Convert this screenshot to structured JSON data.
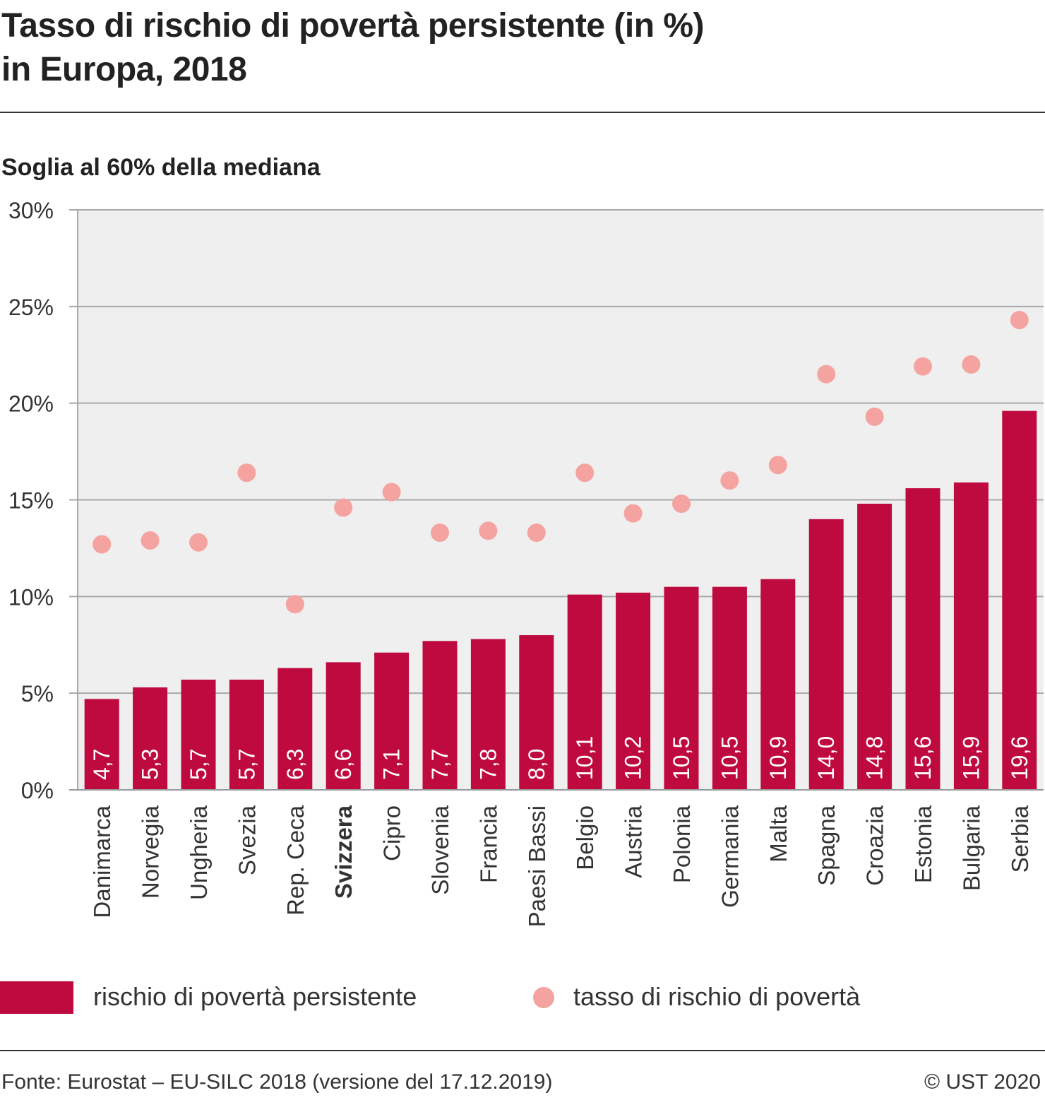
{
  "title_line1": "Tasso di rischio di povertà persistente (in %)",
  "title_line2": "in Europa, 2018",
  "subtitle": "Soglia al 60% della mediana",
  "legend": {
    "bar_label": "rischio di povertà persistente",
    "dot_label": "tasso di rischio di povertà"
  },
  "source": "Fonte:  Eurostat – EU-SILC 2018 (versione del 17.12.2019)",
  "copyright": "© UST 2020",
  "colors": {
    "bar": "#be0a3f",
    "dot": "#f4a3a0",
    "plot_bg": "#efefef",
    "grid": "#a8a8a8"
  },
  "chart_data": {
    "type": "bar",
    "categories": [
      "Danimarca",
      "Norvegia",
      "Ungheria",
      "Svezia",
      "Rep. Ceca",
      "Svizzera",
      "Cipro",
      "Slovenia",
      "Francia",
      "Paesi Bassi",
      "Belgio",
      "Austria",
      "Polonia",
      "Germania",
      "Malta",
      "Spagna",
      "Croazia",
      "Estonia",
      "Bulgaria",
      "Serbia"
    ],
    "highlighted_category": "Svizzera",
    "series": [
      {
        "name": "rischio di povertà persistente",
        "type": "bar",
        "values": [
          4.7,
          5.3,
          5.7,
          5.7,
          6.3,
          6.6,
          7.1,
          7.7,
          7.8,
          8.0,
          10.1,
          10.2,
          10.5,
          10.5,
          10.9,
          14.0,
          14.8,
          15.6,
          15.9,
          19.6
        ],
        "data_labels": [
          "4,7",
          "5,3",
          "5,7",
          "5,7",
          "6,3",
          "6,6",
          "7,1",
          "7,7",
          "7,8",
          "8,0",
          "10,1",
          "10,2",
          "10,5",
          "10,5",
          "10,9",
          "14,0",
          "14,8",
          "15,6",
          "15,9",
          "19,6"
        ]
      },
      {
        "name": "tasso di rischio di povertà",
        "type": "scatter",
        "values": [
          12.7,
          12.9,
          12.8,
          16.4,
          9.6,
          14.6,
          15.4,
          13.3,
          13.4,
          13.3,
          16.4,
          14.3,
          14.8,
          16.0,
          16.8,
          21.5,
          19.3,
          21.9,
          22.0,
          24.3
        ]
      }
    ],
    "ylim": [
      0,
      30
    ],
    "yticks": [
      0,
      5,
      10,
      15,
      20,
      25,
      30
    ],
    "ytick_labels": [
      "0%",
      "5%",
      "10%",
      "15%",
      "20%",
      "25%",
      "30%"
    ],
    "grid": true,
    "legend_position": "bottom"
  }
}
